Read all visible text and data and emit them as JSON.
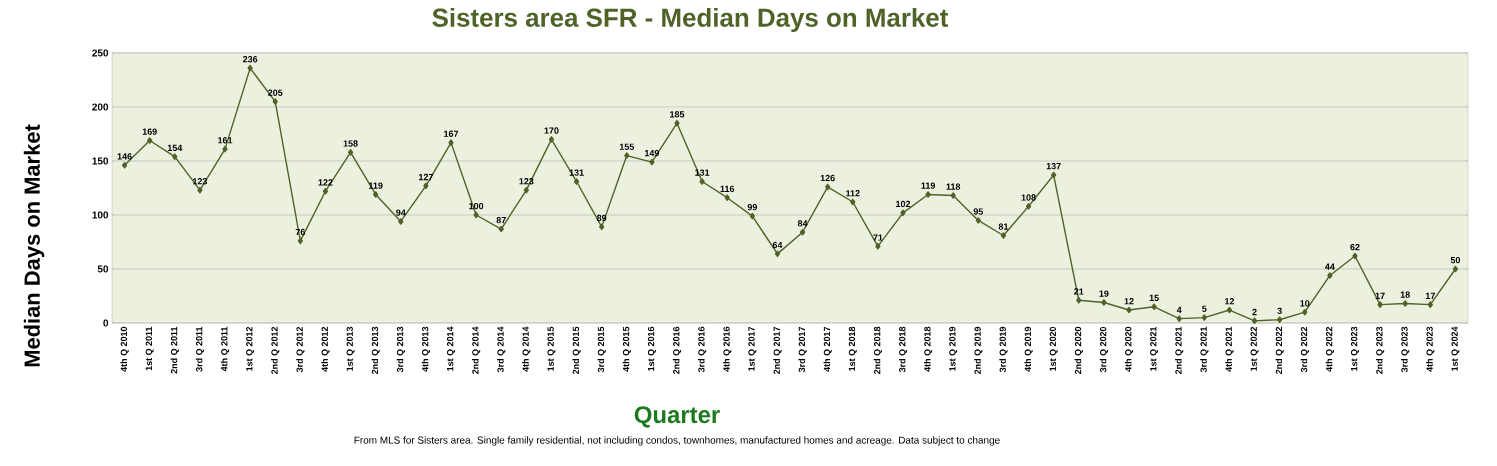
{
  "chart_data": {
    "type": "line",
    "title": "Sisters area SFR - Median Days on Market",
    "xlabel": "Quarter",
    "ylabel": "Median Days on Market",
    "categories": [
      "4th Q 2010",
      "1st Q 2011",
      "2nd Q 2011",
      "3rd Q 2011",
      "4th Q 2011",
      "1st Q 2012",
      "2nd Q 2012",
      "3rd Q 2012",
      "4th Q 2012",
      "1st Q 2013",
      "2nd Q 2013",
      "3rd Q 2013",
      "4th Q 2013",
      "1st Q 2014",
      "2nd Q 2014",
      "3rd Q 2014",
      "4th Q 2014",
      "1st Q 2015",
      "2nd Q 2015",
      "3rd Q 2015",
      "4th Q 2015",
      "1st Q 2016",
      "2nd Q 2016",
      "3rd Q 2016",
      "4th Q 2016",
      "1st Q 2017",
      "2nd Q 2017",
      "3rd Q 2017",
      "4th Q 2017",
      "1st Q 2018",
      "2nd Q 2018",
      "3rd Q 2018",
      "4th Q 2018",
      "1st Q 2019",
      "2nd Q 2019",
      "3rd Q 2019",
      "4th Q 2019",
      "1st Q 2020",
      "2nd Q 2020",
      "3rd Q 2020",
      "4th Q 2020",
      "1st Q 2021",
      "2nd Q 2021",
      "3rd Q 2021",
      "4th Q 2021",
      "1st Q 2022",
      "2nd Q 2022",
      "3rd Q 2022",
      "4th Q 2022",
      "1st Q 2023",
      "2nd Q 2023",
      "3rd Q 2023",
      "4th Q 2023",
      "1st Q 2024"
    ],
    "series": [
      {
        "color": "#4f6228",
        "values": [
          146,
          169,
          154,
          123,
          161,
          236,
          205,
          76,
          122,
          158,
          119,
          94,
          127,
          167,
          100,
          87,
          123,
          170,
          131,
          89,
          155,
          149,
          185,
          131,
          116,
          99,
          64,
          84,
          126,
          112,
          71,
          102,
          119,
          118,
          95,
          81,
          108,
          137,
          21,
          19,
          12,
          15,
          4,
          5,
          12,
          2,
          3,
          10,
          44,
          62,
          17,
          18,
          17,
          50
        ]
      }
    ],
    "ylim": [
      0,
      250
    ],
    "yticks": [
      0,
      50,
      100,
      150,
      200,
      250
    ],
    "grid": "y",
    "marker": "diamond",
    "line_style": "solid",
    "data_labels": true,
    "annotations": [
      "From MLS for Sisters area. Single family residential, not including condos, townhomes, manufactured homes and acreage.  Data subject to change"
    ]
  }
}
